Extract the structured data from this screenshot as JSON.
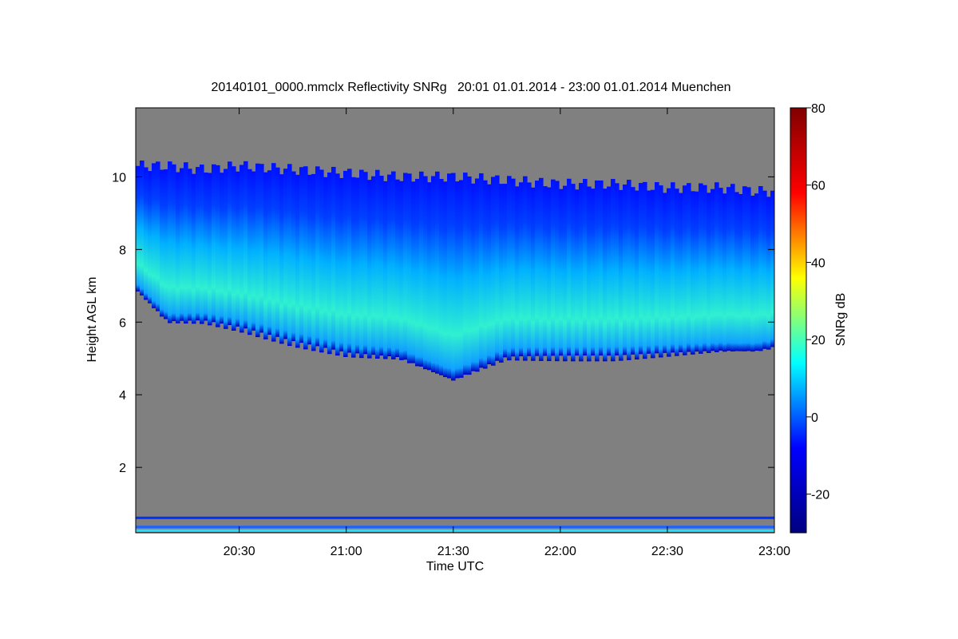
{
  "chart_data": {
    "type": "heatmap",
    "title": "20140101_0000.mmclx Reflectivity SNRg   20:01 01.01.2014 - 23:00 01.01.2014 Muenchen",
    "xlabel": "Time UTC",
    "ylabel": "Height AGL km",
    "colorbar_label": "SNRg dB",
    "x_range": [
      "20:01",
      "23:00"
    ],
    "y_range_km": [
      0.2,
      11.9
    ],
    "x_ticks": [
      "20:30",
      "21:00",
      "21:30",
      "22:00",
      "22:30",
      "23:00"
    ],
    "x_tick_hours": [
      20.5,
      21.0,
      21.5,
      22.0,
      22.5,
      23.0
    ],
    "y_ticks": [
      2,
      4,
      6,
      8,
      10
    ],
    "y_tick_labels": [
      "2",
      "4",
      "6",
      "8",
      "10"
    ],
    "colorbar_range": [
      -30,
      80
    ],
    "colorbar_ticks": [
      -20,
      0,
      20,
      40,
      60,
      80
    ],
    "colorbar_tick_labels": [
      "-20",
      "0",
      "20",
      "40",
      "60",
      "80"
    ],
    "colorscale": [
      "#000080",
      "#0000ff",
      "#00ffff",
      "#ffff00",
      "#ff0000",
      "#800000"
    ],
    "background_color": "#808080",
    "cloud": {
      "times": [
        "20:01",
        "20:10",
        "20:20",
        "20:30",
        "20:45",
        "21:00",
        "21:15",
        "21:30",
        "21:45",
        "22:00",
        "22:15",
        "22:30",
        "22:45",
        "22:55",
        "23:00"
      ],
      "top_km": [
        10.3,
        10.3,
        10.2,
        10.3,
        10.2,
        10.1,
        10.0,
        10.0,
        9.9,
        9.8,
        9.8,
        9.7,
        9.7,
        9.6,
        9.6
      ],
      "base_km": [
        6.9,
        6.0,
        6.0,
        5.8,
        5.4,
        5.1,
        5.0,
        4.4,
        5.0,
        5.0,
        5.0,
        5.1,
        5.2,
        5.2,
        5.3
      ],
      "peak_snr_db": [
        5,
        8,
        10,
        12,
        15,
        17,
        20,
        22,
        20,
        18,
        18,
        16,
        14,
        12,
        10
      ]
    },
    "near_ground_bands_km": [
      0.25,
      0.35,
      0.6
    ],
    "grid": false
  }
}
